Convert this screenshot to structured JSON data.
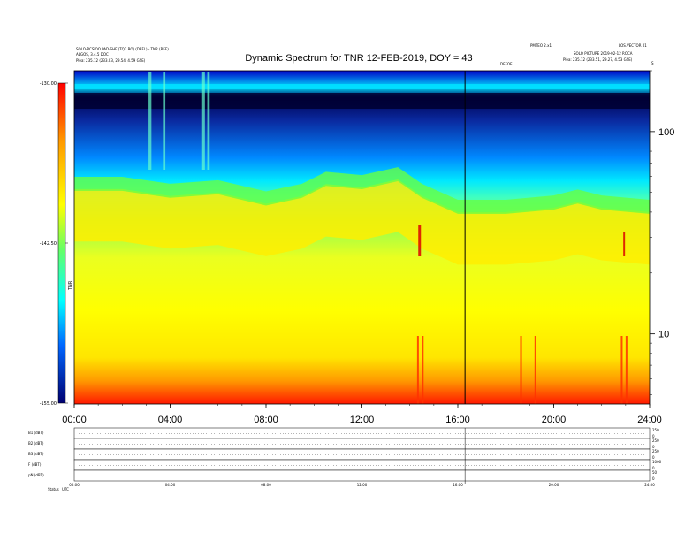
{
  "header": {
    "top_left_1": "SOLO-RCSIOO PAD-SHF (TQ2 BO) (DEFL) - TNR (REF)",
    "top_left_2": "ALGOS, 3.4.5 DOC",
    "top_left_3": "Plea: 235.12 (233.03, 29.54, 4.59 GSE)",
    "top_right_small_1": "PMTEO 2.x1",
    "top_right_small_2": "LOS.VECTOR 01",
    "top_right_2": "SOLO PICTURE 2019-02-12 ROCA",
    "top_right_3": "Plea: 235.12 (233.51, 29.27, 4.53 GSE)",
    "marker_label": "DEFOE",
    "corner_mark": "S"
  },
  "chart_data": {
    "type": "heatmap",
    "title": "Dynamic Spectrum for TNR 12-FEB-2019, DOY = 43",
    "x_ticks": [
      "00:00",
      "04:00",
      "08:00",
      "12:00",
      "16:00",
      "20:00",
      "24:00"
    ],
    "x_range_hours": [
      0,
      24
    ],
    "y_scale": "log",
    "y_ticks": [
      "100",
      "10"
    ],
    "y_tick_values": [
      100,
      10
    ],
    "y_range": [
      4.5,
      200
    ],
    "colorbar": {
      "ticks": [
        "-130.00",
        "-142.50",
        "-155.00"
      ],
      "range": [
        -155.0,
        -130.0
      ],
      "label": "TNR",
      "colors": [
        "#000070",
        "#0000e0",
        "#0066ff",
        "#00ffff",
        "#66ff66",
        "#ffff00",
        "#ff9900",
        "#ff0000",
        "#cc0000"
      ]
    },
    "vertical_marker_hour": 16.3,
    "features": {
      "band_ridge_hours": [
        0,
        2,
        4,
        6,
        8,
        9.5,
        10.5,
        12,
        13.5,
        14.5,
        16,
        18,
        20,
        21,
        22,
        24
      ],
      "band_ridge_freq": [
        52,
        52,
        48,
        50,
        44,
        48,
        55,
        53,
        58,
        48,
        40,
        40,
        42,
        45,
        42,
        40
      ],
      "spikes_hours": [
        14.3,
        14.5,
        18.6,
        19.2,
        22.8,
        23.0
      ]
    }
  },
  "panels": {
    "rows": [
      {
        "label": "B1 (dBT)",
        "right_ticks": [
          "250",
          "0"
        ]
      },
      {
        "label": "B2 (dBT)",
        "right_ticks": [
          "250",
          "0"
        ]
      },
      {
        "label": "B3 (dBT)",
        "right_ticks": [
          "250",
          "0"
        ]
      },
      {
        "label": "F (dBT)",
        "right_ticks": [
          "1000",
          "0"
        ]
      },
      {
        "label": "pN (dBT)",
        "right_ticks": [
          "50",
          "0"
        ]
      }
    ],
    "x_ticks": [
      "00:00",
      "04:00",
      "08:00",
      "12:00",
      "16:00",
      "20:00",
      "24:00"
    ],
    "bottom_label": "Status",
    "bottom_label_2": "UTC"
  }
}
